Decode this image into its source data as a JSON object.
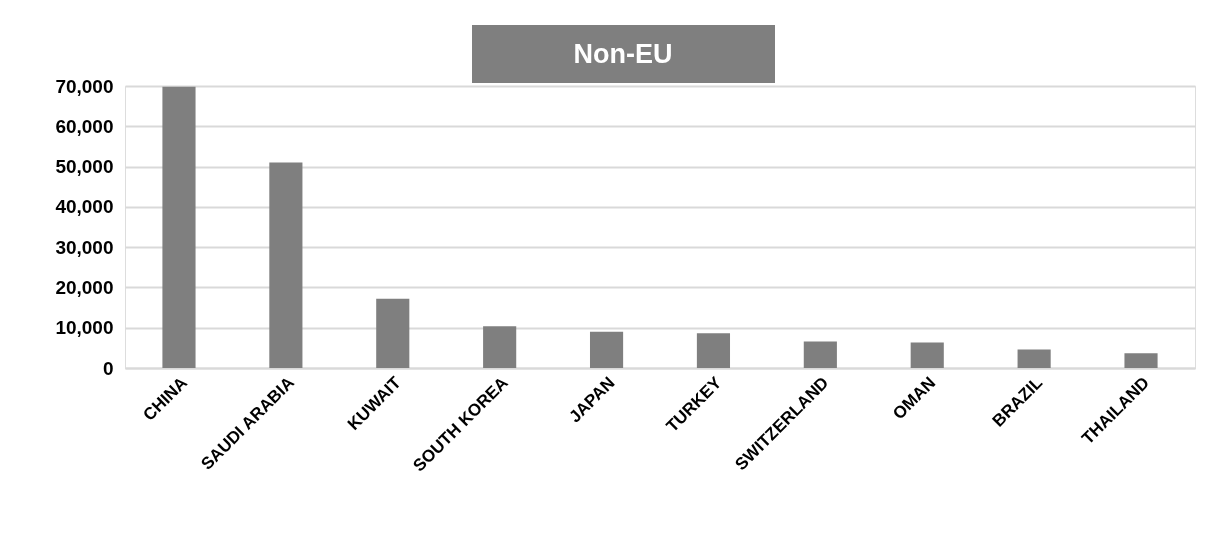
{
  "chart_data": {
    "type": "bar",
    "title": "Non-EU",
    "categories": [
      "CHINA",
      "SAUDI ARABIA",
      "KUWAIT",
      "SOUTH KOREA",
      "JAPAN",
      "TURKEY",
      "SWITZERLAND",
      "OMAN",
      "BRAZIL",
      "THAILAND"
    ],
    "values": [
      69800,
      51000,
      17200,
      10350,
      9000,
      8650,
      6550,
      6350,
      4600,
      3650
    ],
    "color": "#7f7f7f",
    "ylim": [
      0,
      70000
    ],
    "yticks": [
      {
        "value": 0,
        "label": "0"
      },
      {
        "value": 10000,
        "label": "10,000"
      },
      {
        "value": 20000,
        "label": "20,000"
      },
      {
        "value": 30000,
        "label": "30,000"
      },
      {
        "value": 40000,
        "label": "40,000"
      },
      {
        "value": 50000,
        "label": "50,000"
      },
      {
        "value": 60000,
        "label": "60,000"
      },
      {
        "value": 70000,
        "label": "70,000"
      }
    ],
    "grid": "y",
    "legend": false
  }
}
